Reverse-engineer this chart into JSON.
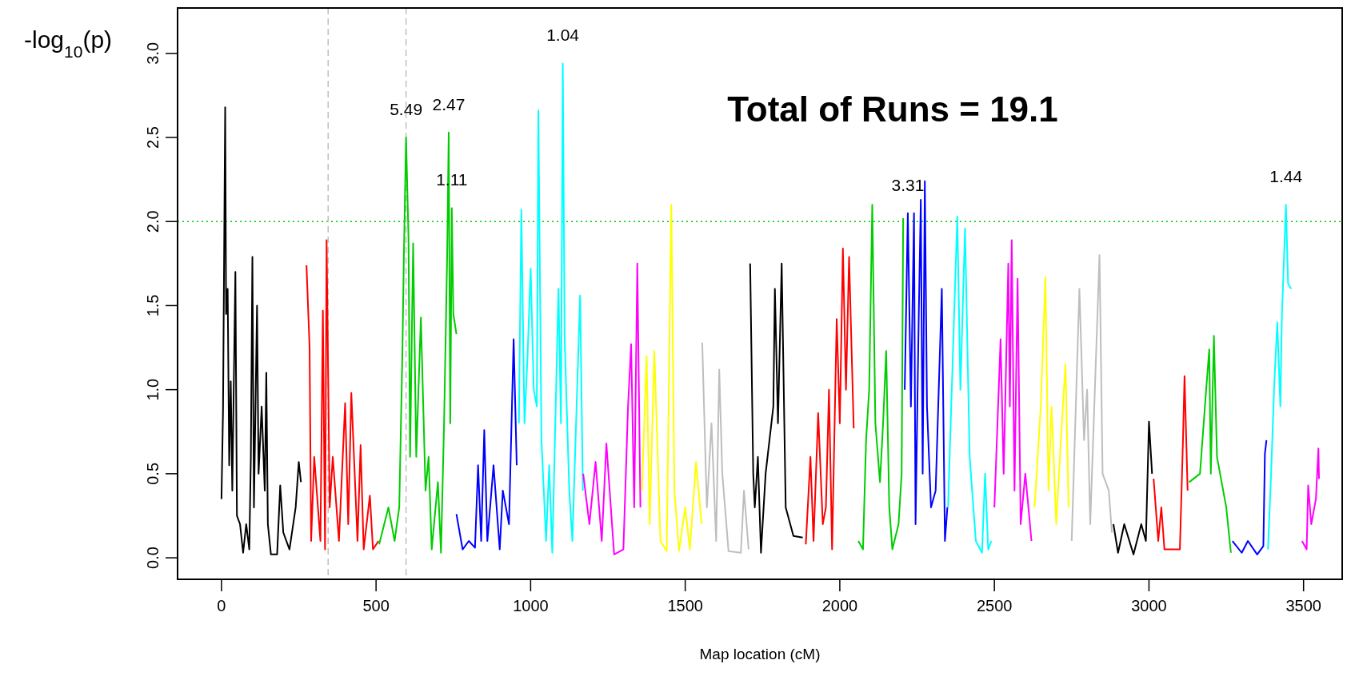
{
  "chart_data": {
    "type": "line",
    "xlabel": "Map location (cM)",
    "ylabel": "-log$_{10}$(p)",
    "xlim": [
      -142,
      3625
    ],
    "ylim": [
      -0.128,
      3.27
    ],
    "xticks": [
      0,
      500,
      1000,
      1500,
      2000,
      2500,
      3000,
      3500
    ],
    "yticks": [
      {
        "value": 0,
        "label": "0.0"
      },
      {
        "value": 0.5,
        "label": "0.5"
      },
      {
        "value": 1,
        "label": "1.0"
      },
      {
        "value": 1.5,
        "label": "1.5"
      },
      {
        "value": 2,
        "label": "2.0"
      },
      {
        "value": 2.5,
        "label": "2.5"
      },
      {
        "value": 3,
        "label": "3.0"
      }
    ],
    "grid": false,
    "marker": "none",
    "line_style": "solid",
    "ref_lines": [
      {
        "axis": "y",
        "value": 2,
        "color": "#00cd00",
        "line_style": "dotted"
      },
      {
        "axis": "x",
        "value": 345,
        "color": "#bebebe",
        "line_style": "dashed"
      },
      {
        "axis": "x",
        "value": 597,
        "color": "#bebebe",
        "line_style": "dashed"
      }
    ],
    "annotations": [
      "Total of Runs = 19.1",
      {
        "text": "5.49",
        "x": 597,
        "y": 2.5
      },
      {
        "text": "2.47",
        "x": 735,
        "y": 2.53
      },
      {
        "text": "1.11",
        "x": 745,
        "y": 2.08
      },
      {
        "text": "1.04",
        "x": 1104,
        "y": 2.94
      },
      {
        "text": "3.31",
        "x": 2220,
        "y": 2.05
      },
      {
        "text": "1.44",
        "x": 3443,
        "y": 2.1
      }
    ],
    "series": [
      {
        "color": "#000000",
        "x": [
          0,
          5,
          12,
          15,
          20,
          25,
          30,
          35,
          45,
          50,
          60,
          70,
          80,
          90,
          95,
          100,
          105,
          115,
          120,
          130,
          140,
          145,
          150,
          160,
          180,
          190,
          200,
          220,
          240,
          250,
          257
        ],
        "values": [
          0.35,
          0.88,
          2.68,
          1.45,
          1.6,
          0.55,
          1.05,
          0.4,
          1.7,
          0.25,
          0.2,
          0.03,
          0.2,
          0.05,
          0.6,
          1.79,
          0.3,
          1.5,
          0.5,
          0.9,
          0.4,
          1.1,
          0.2,
          0.02,
          0.02,
          0.43,
          0.15,
          0.05,
          0.3,
          0.57,
          0.45
        ]
      },
      {
        "color": "#ff0000",
        "x": [
          275,
          285,
          290,
          300,
          320,
          328,
          335,
          340,
          350,
          360,
          380,
          400,
          410,
          420,
          440,
          450,
          460,
          480,
          490,
          508
        ],
        "values": [
          1.74,
          1.25,
          0.1,
          0.6,
          0.1,
          1.47,
          0.05,
          1.89,
          0.3,
          0.6,
          0.1,
          0.92,
          0.2,
          0.98,
          0.1,
          0.67,
          0.05,
          0.37,
          0.05,
          0.1
        ]
      },
      {
        "color": "#00cd00",
        "x": [
          510,
          540,
          560,
          575,
          585,
          590,
          597,
          605,
          610,
          620,
          630,
          645,
          660,
          670,
          680,
          700,
          710,
          720,
          730,
          735,
          740,
          745,
          750,
          760
        ],
        "values": [
          0.08,
          0.3,
          0.1,
          0.3,
          1.2,
          1.8,
          2.5,
          1.9,
          0.6,
          1.87,
          0.6,
          1.43,
          0.4,
          0.6,
          0.05,
          0.45,
          0.03,
          0.8,
          1.8,
          2.53,
          0.8,
          2.08,
          1.45,
          1.33
        ]
      },
      {
        "color": "#0000ff",
        "x": [
          760,
          780,
          800,
          820,
          830,
          840,
          850,
          860,
          880,
          900,
          910,
          930,
          945,
          955
        ],
        "values": [
          0.26,
          0.05,
          0.1,
          0.06,
          0.55,
          0.1,
          0.76,
          0.1,
          0.55,
          0.05,
          0.4,
          0.2,
          1.3,
          0.55
        ]
      },
      {
        "color": "#00ffff",
        "x": [
          962,
          970,
          980,
          990,
          1000,
          1010,
          1020,
          1025,
          1035,
          1050,
          1060,
          1070,
          1090,
          1098,
          1104,
          1110,
          1125,
          1135,
          1160,
          1169
        ],
        "values": [
          0.8,
          2.07,
          0.8,
          1.2,
          1.72,
          1.0,
          0.9,
          2.66,
          0.7,
          0.1,
          0.55,
          0.03,
          1.6,
          0.8,
          2.94,
          1.3,
          0.4,
          0.1,
          1.56,
          0.4
        ]
      },
      {
        "color": "#ff00ff",
        "x": [
          1170,
          1190,
          1210,
          1230,
          1245,
          1270,
          1300,
          1315,
          1325,
          1335,
          1345,
          1355
        ],
        "values": [
          0.5,
          0.2,
          0.57,
          0.1,
          0.68,
          0.02,
          0.05,
          0.9,
          1.27,
          0.3,
          1.75,
          0.3
        ]
      },
      {
        "color": "#ffff00",
        "x": [
          1360,
          1375,
          1385,
          1400,
          1420,
          1440,
          1455,
          1465,
          1480,
          1500,
          1515,
          1535,
          1553
        ],
        "values": [
          0.4,
          1.2,
          0.2,
          1.23,
          0.1,
          0.04,
          2.1,
          0.4,
          0.04,
          0.3,
          0.05,
          0.57,
          0.2
        ]
      },
      {
        "color": "#bebebe",
        "x": [
          1555,
          1570,
          1585,
          1600,
          1610,
          1620,
          1640,
          1680,
          1690,
          1705
        ],
        "values": [
          1.28,
          0.3,
          0.8,
          0.1,
          1.12,
          0.5,
          0.04,
          0.03,
          0.4,
          0.05
        ]
      },
      {
        "color": "#000000",
        "x": [
          1710,
          1720,
          1725,
          1735,
          1745,
          1760,
          1785,
          1790,
          1800,
          1812,
          1825,
          1850,
          1880
        ],
        "values": [
          1.75,
          0.5,
          0.3,
          0.6,
          0.03,
          0.5,
          0.9,
          1.6,
          0.8,
          1.75,
          0.3,
          0.13,
          0.12
        ]
      },
      {
        "color": "#ff0000",
        "x": [
          1890,
          1905,
          1915,
          1930,
          1945,
          1955,
          1965,
          1975,
          1990,
          2000,
          2010,
          2020,
          2030,
          2045
        ],
        "values": [
          0.08,
          0.6,
          0.1,
          0.86,
          0.2,
          0.3,
          1.0,
          0.05,
          1.42,
          0.8,
          1.84,
          1.0,
          1.79,
          0.77
        ]
      },
      {
        "color": "#00cd00",
        "x": [
          2060,
          2075,
          2085,
          2095,
          2105,
          2115,
          2130,
          2140,
          2150,
          2160,
          2170,
          2190,
          2200,
          2205
        ],
        "values": [
          0.1,
          0.05,
          0.7,
          1.0,
          2.1,
          0.8,
          0.45,
          0.8,
          1.23,
          0.3,
          0.05,
          0.2,
          0.5,
          2.02
        ]
      },
      {
        "color": "#0000ff",
        "x": [
          2210,
          2220,
          2230,
          2240,
          2245,
          2255,
          2262,
          2268,
          2275,
          2282,
          2295,
          2310,
          2330,
          2340,
          2348
        ],
        "values": [
          1.0,
          2.05,
          0.9,
          2.05,
          0.2,
          1.4,
          2.13,
          0.5,
          2.24,
          0.9,
          0.3,
          0.4,
          1.6,
          0.1,
          0.3
        ]
      },
      {
        "color": "#00ffff",
        "x": [
          2350,
          2380,
          2390,
          2405,
          2420,
          2440,
          2460,
          2470,
          2480,
          2490
        ],
        "values": [
          0.3,
          2.03,
          1.0,
          1.96,
          0.6,
          0.1,
          0.03,
          0.5,
          0.05,
          0.1
        ]
      },
      {
        "color": "#ff00ff",
        "x": [
          2500,
          2520,
          2530,
          2545,
          2550,
          2556,
          2565,
          2575,
          2585,
          2600,
          2620
        ],
        "values": [
          0.3,
          1.3,
          0.5,
          1.75,
          0.9,
          1.89,
          0.4,
          1.66,
          0.2,
          0.5,
          0.1
        ]
      },
      {
        "color": "#ffff00",
        "x": [
          2630,
          2650,
          2665,
          2675,
          2685,
          2700,
          2715,
          2730,
          2740
        ],
        "values": [
          0.3,
          0.9,
          1.67,
          0.4,
          0.9,
          0.2,
          0.7,
          1.15,
          0.3
        ]
      },
      {
        "color": "#bebebe",
        "x": [
          2750,
          2775,
          2790,
          2800,
          2810,
          2840,
          2850,
          2870,
          2880
        ],
        "values": [
          0.1,
          1.6,
          0.7,
          1.0,
          0.2,
          1.8,
          0.5,
          0.4,
          0.15
        ]
      },
      {
        "color": "#000000",
        "x": [
          2885,
          2900,
          2920,
          2950,
          2975,
          2990,
          3000,
          3010
        ],
        "values": [
          0.2,
          0.03,
          0.2,
          0.02,
          0.2,
          0.1,
          0.81,
          0.5
        ]
      },
      {
        "color": "#ff0000",
        "x": [
          3015,
          3030,
          3040,
          3050,
          3100,
          3110,
          3115,
          3125
        ],
        "values": [
          0.47,
          0.1,
          0.3,
          0.05,
          0.05,
          0.7,
          1.08,
          0.4
        ]
      },
      {
        "color": "#00cd00",
        "x": [
          3130,
          3165,
          3185,
          3195,
          3200,
          3210,
          3220,
          3230,
          3250,
          3265
        ],
        "values": [
          0.45,
          0.5,
          1.0,
          1.24,
          0.5,
          1.32,
          0.6,
          0.5,
          0.3,
          0.03
        ]
      },
      {
        "color": "#0000ff",
        "x": [
          3270,
          3300,
          3320,
          3350,
          3370,
          3375,
          3380
        ],
        "values": [
          0.1,
          0.03,
          0.1,
          0.02,
          0.07,
          0.62,
          0.7
        ]
      },
      {
        "color": "#00ffff",
        "x": [
          3385,
          3395,
          3405,
          3415,
          3425,
          3430,
          3443,
          3450,
          3460
        ],
        "values": [
          0.05,
          0.5,
          1.02,
          1.4,
          0.9,
          1.44,
          2.1,
          1.63,
          1.6
        ]
      },
      {
        "color": "#ff00ff",
        "x": [
          3495,
          3510,
          3515,
          3525,
          3540,
          3548,
          3550
        ],
        "values": [
          0.1,
          0.05,
          0.43,
          0.2,
          0.35,
          0.65,
          0.47
        ]
      }
    ]
  }
}
